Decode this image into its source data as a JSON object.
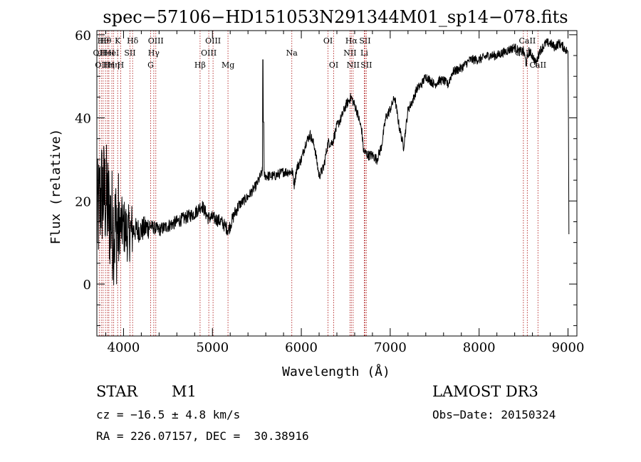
{
  "chart_data": {
    "type": "line",
    "title": "spec−57106−HD151053N291344M01_sp14−078.fits",
    "xlabel": "Wavelength (Å)",
    "ylabel": "Flux (relative)",
    "xlim": [
      3700,
      9100
    ],
    "ylim": [
      -12.5,
      61
    ],
    "xticks": [
      4000,
      5000,
      6000,
      7000,
      8000,
      9000
    ],
    "yticks": [
      0,
      20,
      40,
      60
    ],
    "grid": false,
    "line_color": "#000000",
    "marker_color": "#b22222",
    "line_markers": [
      {
        "wl": 3727,
        "label": "OII",
        "row": 1
      },
      {
        "wl": 3750,
        "label": "OII",
        "row": 2
      },
      {
        "wl": 3770,
        "label": "Hθ",
        "row": 0
      },
      {
        "wl": 3797,
        "label": "Hθ",
        "row": 0
      },
      {
        "wl": 3820,
        "label": "HeI",
        "row": 1
      },
      {
        "wl": 3835,
        "label": "Hη",
        "row": 2
      },
      {
        "wl": 3869,
        "label": "HeI",
        "row": 1
      },
      {
        "wl": 3889,
        "label": "Hη",
        "row": 2
      },
      {
        "wl": 3934,
        "label": "K",
        "row": 0
      },
      {
        "wl": 3968,
        "label": "H",
        "row": 2
      },
      {
        "wl": 4072,
        "label": "SII",
        "row": 1
      },
      {
        "wl": 4102,
        "label": "Hδ",
        "row": 0
      },
      {
        "wl": 4305,
        "label": "G",
        "row": 2
      },
      {
        "wl": 4340,
        "label": "Hγ",
        "row": 1
      },
      {
        "wl": 4363,
        "label": "OIII",
        "row": 0
      },
      {
        "wl": 4861,
        "label": "Hβ",
        "row": 2
      },
      {
        "wl": 4959,
        "label": "OIII",
        "row": 1
      },
      {
        "wl": 5007,
        "label": "OIII",
        "row": 0
      },
      {
        "wl": 5175,
        "label": "Mg",
        "row": 2
      },
      {
        "wl": 5893,
        "label": "Na",
        "row": 1
      },
      {
        "wl": 6300,
        "label": "OI",
        "row": 0
      },
      {
        "wl": 6364,
        "label": "OI",
        "row": 2
      },
      {
        "wl": 6548,
        "label": "NII",
        "row": 1
      },
      {
        "wl": 6563,
        "label": "Hα",
        "row": 0
      },
      {
        "wl": 6583,
        "label": "NII",
        "row": 2
      },
      {
        "wl": 6708,
        "label": "Li",
        "row": 1
      },
      {
        "wl": 6716,
        "label": "SII",
        "row": 0
      },
      {
        "wl": 6731,
        "label": "SII",
        "row": 2
      },
      {
        "wl": 8498,
        "label": "CaII",
        "row": 1
      },
      {
        "wl": 8542,
        "label": "CaII",
        "row": 0
      },
      {
        "wl": 8662,
        "label": "CaII",
        "row": 2
      }
    ],
    "spectrum_knots": [
      [
        3700,
        15
      ],
      [
        3750,
        22
      ],
      [
        3800,
        21
      ],
      [
        3850,
        16
      ],
      [
        3900,
        13
      ],
      [
        3950,
        14
      ],
      [
        4000,
        14
      ],
      [
        4050,
        12
      ],
      [
        4100,
        13
      ],
      [
        4200,
        13
      ],
      [
        4300,
        14
      ],
      [
        4400,
        13
      ],
      [
        4500,
        14
      ],
      [
        4600,
        15
      ],
      [
        4700,
        16
      ],
      [
        4800,
        17
      ],
      [
        4880,
        19
      ],
      [
        4950,
        16
      ],
      [
        5000,
        16
      ],
      [
        5100,
        15
      ],
      [
        5180,
        13
      ],
      [
        5250,
        17
      ],
      [
        5300,
        19
      ],
      [
        5400,
        21
      ],
      [
        5500,
        24
      ],
      [
        5560,
        27
      ],
      [
        5600,
        26
      ],
      [
        5700,
        26
      ],
      [
        5800,
        27
      ],
      [
        5900,
        27
      ],
      [
        5920,
        24
      ],
      [
        5950,
        28
      ],
      [
        6000,
        30
      ],
      [
        6050,
        34
      ],
      [
        6100,
        36
      ],
      [
        6150,
        33
      ],
      [
        6200,
        26
      ],
      [
        6250,
        28
      ],
      [
        6300,
        34
      ],
      [
        6350,
        34
      ],
      [
        6400,
        38
      ],
      [
        6450,
        40
      ],
      [
        6500,
        43
      ],
      [
        6560,
        45
      ],
      [
        6620,
        42
      ],
      [
        6680,
        37
      ],
      [
        6700,
        32
      ],
      [
        6750,
        31
      ],
      [
        6800,
        31
      ],
      [
        6850,
        30
      ],
      [
        6900,
        33
      ],
      [
        6950,
        40
      ],
      [
        7000,
        42
      ],
      [
        7050,
        45
      ],
      [
        7100,
        38
      ],
      [
        7150,
        33
      ],
      [
        7200,
        42
      ],
      [
        7250,
        44
      ],
      [
        7300,
        47
      ],
      [
        7350,
        48
      ],
      [
        7400,
        50
      ],
      [
        7450,
        49
      ],
      [
        7500,
        48
      ],
      [
        7550,
        49
      ],
      [
        7600,
        49
      ],
      [
        7650,
        48
      ],
      [
        7700,
        51
      ],
      [
        7800,
        52
      ],
      [
        7900,
        54
      ],
      [
        8000,
        54
      ],
      [
        8100,
        55
      ],
      [
        8200,
        55
      ],
      [
        8300,
        56
      ],
      [
        8400,
        57
      ],
      [
        8450,
        56
      ],
      [
        8500,
        56
      ],
      [
        8530,
        53
      ],
      [
        8560,
        56
      ],
      [
        8600,
        55
      ],
      [
        8640,
        53
      ],
      [
        8680,
        56
      ],
      [
        8750,
        58
      ],
      [
        8800,
        58
      ],
      [
        8850,
        57
      ],
      [
        8900,
        58
      ],
      [
        8950,
        57
      ],
      [
        8990,
        56
      ]
    ],
    "spike_points": [
      [
        5568,
        54
      ],
      [
        5577,
        39
      ]
    ],
    "end_points": [
      [
        9000,
        56
      ],
      [
        9005,
        40
      ],
      [
        9010,
        12
      ]
    ]
  },
  "info": {
    "object_class": "STAR",
    "subclass": "M1",
    "survey": "LAMOST DR3",
    "cz": "cz = −16.5 ± 4.8 km/s",
    "obs_date": "Obs−Date: 20150324",
    "radec": "RA = 226.07157, DEC =  30.38916"
  }
}
